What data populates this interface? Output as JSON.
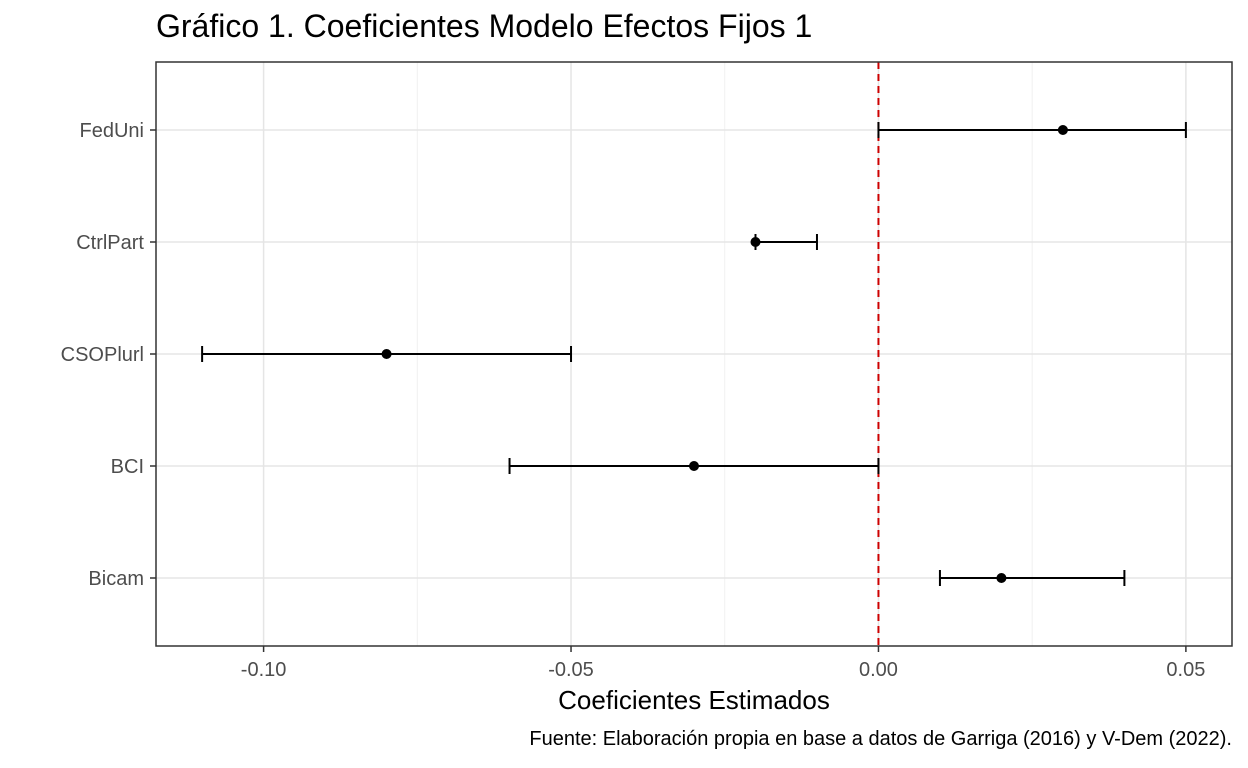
{
  "chart_data": {
    "type": "coefficient-plot",
    "title": "Gráfico 1. Coeficientes Modelo Efectos Fijos 1",
    "xlabel": "Coeficientes Estimados",
    "ylabel": "",
    "caption": "Fuente: Elaboración propia en base a datos de Garriga (2016) y V-Dem (2022).",
    "xlim": [
      -0.1175,
      0.0575
    ],
    "x_ticks": [
      -0.1,
      -0.05,
      0.0,
      0.05
    ],
    "x_tick_labels": [
      "-0.10",
      "-0.05",
      "0.00",
      "0.05"
    ],
    "reference_line": {
      "x": 0,
      "style": "dashed",
      "color": "#cc0000"
    },
    "grid": true,
    "categories": [
      "FedUni",
      "CtrlPart",
      "CSOPlurl",
      "BCI",
      "Bicam"
    ],
    "estimates": [
      0.03,
      -0.02,
      -0.08,
      -0.03,
      0.02
    ],
    "ci_low": [
      0.0,
      -0.02,
      -0.11,
      -0.06,
      0.01
    ],
    "ci_high": [
      0.05,
      -0.01,
      -0.05,
      0.0,
      0.04
    ]
  }
}
